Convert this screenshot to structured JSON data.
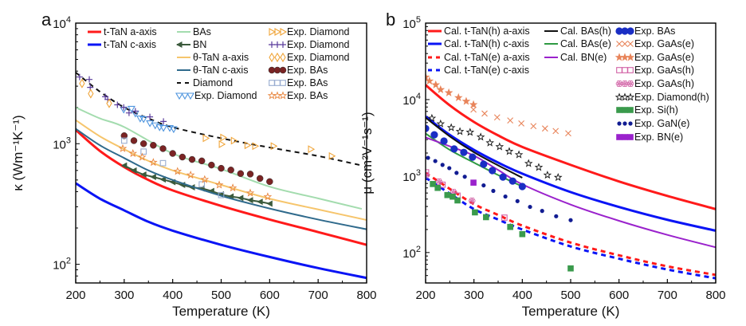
{
  "chart_data": [
    {
      "panel_label": "a",
      "type": "line",
      "xlabel": "Temperature (K)",
      "ylabel": "κ (Wm⁻¹K⁻¹)",
      "xlim": [
        200,
        800
      ],
      "ylim": [
        70,
        10000
      ],
      "yscale": "log",
      "xticks": [
        200,
        300,
        400,
        500,
        600,
        700,
        800
      ],
      "yticks": [
        {
          "value": 100,
          "label": "10",
          "exp": "2"
        },
        {
          "value": 1000,
          "label": "10",
          "exp": "3"
        },
        {
          "value": 10000,
          "label": "10",
          "exp": "4"
        }
      ],
      "grid": false,
      "legend_placement": "top",
      "series": [
        {
          "name": "t-TaN a-axis",
          "style": "line",
          "color": "#ff1a1a",
          "width": 3,
          "x": [
            200,
            250,
            300,
            350,
            400,
            500,
            600,
            700,
            800
          ],
          "y": [
            1300,
            870,
            640,
            500,
            410,
            305,
            235,
            185,
            145
          ]
        },
        {
          "name": "t-TaN c-axis",
          "style": "line",
          "color": "#0a14f5",
          "width": 3,
          "x": [
            200,
            250,
            300,
            350,
            400,
            500,
            600,
            700,
            800
          ],
          "y": [
            470,
            350,
            280,
            225,
            190,
            145,
            115,
            93,
            77
          ]
        },
        {
          "name": "BAs",
          "style": "line",
          "color": "#a3dcae",
          "width": 2,
          "x": [
            200,
            250,
            300,
            400,
            500,
            600,
            700,
            790
          ],
          "y": [
            2000,
            1620,
            1375,
            830,
            617,
            440,
            352,
            288
          ]
        },
        {
          "name": "BN",
          "style": "line-marker",
          "marker": "triangle-left-filled",
          "color": "#3b5a3c",
          "width": 2,
          "x": [
            300,
            320,
            340,
            360,
            380,
            400,
            420,
            440,
            460,
            480,
            500,
            520,
            540,
            560,
            580,
            600
          ],
          "y": [
            660,
            600,
            555,
            530,
            505,
            480,
            455,
            435,
            425,
            405,
            380,
            365,
            355,
            340,
            330,
            318
          ]
        },
        {
          "name": "θ-TaN a-axis",
          "style": "line",
          "color": "#f6c56c",
          "width": 2,
          "x": [
            200,
            250,
            300,
            350,
            400,
            500,
            600,
            700,
            800
          ],
          "y": [
            1570,
            1150,
            900,
            720,
            600,
            455,
            350,
            285,
            233
          ]
        },
        {
          "name": "θ-TaN c-axis",
          "style": "line",
          "color": "#2f6a8c",
          "width": 2,
          "x": [
            200,
            250,
            300,
            350,
            400,
            500,
            600,
            700,
            800
          ],
          "y": [
            1330,
            970,
            760,
            600,
            500,
            370,
            290,
            235,
            195
          ]
        },
        {
          "name": "Diamond",
          "style": "dashed",
          "color": "#111111",
          "width": 2,
          "x": [
            200,
            250,
            300,
            350,
            400,
            500,
            600,
            700,
            790
          ],
          "y": [
            3900,
            2700,
            2000,
            1620,
            1370,
            1110,
            930,
            790,
            660
          ]
        },
        {
          "name": "Exp. Diamond",
          "style": "marker",
          "marker": "triangle-down-open",
          "color": "#4f95de",
          "x": [
            299,
            315,
            323,
            333,
            340,
            353,
            364,
            373,
            381,
            394,
            402
          ],
          "y": [
            1920,
            1950,
            1780,
            1620,
            1600,
            1480,
            1420,
            1370,
            1350,
            1350,
            1320
          ]
        },
        {
          "name": "Exp. Diamond",
          "style": "marker",
          "marker": "triangle-right-open",
          "color": "#f0a53a",
          "x": [
            468,
            501,
            504,
            526,
            554,
            570,
            608,
            685,
            728
          ],
          "y": [
            1110,
            990,
            1125,
            1060,
            970,
            955,
            955,
            900,
            790
          ]
        },
        {
          "name": "Exp. Diamond",
          "style": "marker",
          "marker": "plus",
          "color": "#5a3c9c",
          "x": [
            208,
            228,
            230,
            261,
            266,
            286,
            299,
            310,
            323,
            353,
            381
          ],
          "y": [
            3575,
            3410,
            2930,
            2450,
            2330,
            2100,
            2000,
            1800,
            1860,
            1670,
            1530
          ]
        },
        {
          "name": "Exp. Diamond",
          "style": "marker",
          "marker": "diamond-open",
          "color": "#f0a53a",
          "x": [
            213,
            231,
            269
          ],
          "y": [
            3160,
            2600,
            2160
          ]
        },
        {
          "name": "Exp. BAs",
          "style": "marker",
          "marker": "circle-filled",
          "color": "#7a2424",
          "x": [
            300,
            320,
            340,
            360,
            380,
            400,
            420,
            440,
            460,
            480,
            500,
            520,
            540,
            560,
            580,
            600
          ],
          "y": [
            1165,
            1060,
            1000,
            970,
            910,
            830,
            775,
            740,
            720,
            665,
            625,
            605,
            565,
            560,
            515,
            485
          ]
        },
        {
          "name": "Exp. BAs",
          "style": "marker",
          "marker": "square-open",
          "color": "#98acd0",
          "x": [
            300,
            340,
            380,
            460,
            500
          ],
          "y": [
            1060,
            860,
            690,
            460,
            375
          ]
        },
        {
          "name": "Exp. BAs",
          "style": "marker",
          "marker": "star-open",
          "color": "#e8843c",
          "x": [
            297,
            318,
            337,
            360,
            410,
            437,
            466,
            496,
            524,
            560,
            596
          ],
          "y": [
            912,
            830,
            774,
            700,
            590,
            550,
            505,
            455,
            430,
            390,
            363
          ]
        }
      ]
    },
    {
      "panel_label": "b",
      "type": "line",
      "xlabel": "Temperature (K)",
      "ylabel": "μ (cm²V⁻¹s⁻¹)",
      "xlim": [
        200,
        800
      ],
      "ylim": [
        40,
        100000
      ],
      "yscale": "log",
      "xticks": [
        200,
        300,
        400,
        500,
        600,
        700,
        800
      ],
      "yticks": [
        {
          "value": 100,
          "label": "10",
          "exp": "2"
        },
        {
          "value": 1000,
          "label": "10",
          "exp": "3"
        },
        {
          "value": 10000,
          "label": "10",
          "exp": "4"
        },
        {
          "value": 100000,
          "label": "10",
          "exp": "5"
        }
      ],
      "grid": false,
      "legend_placement": "top",
      "series": [
        {
          "name": "Cal. t-TaN(h) a-axis",
          "style": "line",
          "color": "#ff1a1a",
          "width": 3,
          "x": [
            200,
            250,
            300,
            350,
            400,
            500,
            600,
            700,
            800
          ],
          "y": [
            15500,
            8400,
            5100,
            3400,
            2400,
            1400,
            850,
            550,
            370
          ]
        },
        {
          "name": "Cal. t-TaN(h) c-axis",
          "style": "line",
          "color": "#0a14f5",
          "width": 3,
          "x": [
            200,
            250,
            300,
            350,
            400,
            500,
            600,
            700,
            800
          ],
          "y": [
            6000,
            3450,
            2200,
            1500,
            1075,
            617,
            394,
            268,
            193
          ]
        },
        {
          "name": "Cal. t-TaN(e) a-axis",
          "style": "dashed",
          "color": "#ff1a1a",
          "width": 3,
          "x": [
            200,
            250,
            300,
            350,
            400,
            500,
            600,
            700,
            800
          ],
          "y": [
            1100,
            680,
            430,
            310,
            225,
            135,
            92,
            66,
            51
          ]
        },
        {
          "name": "Cal. t-TaN(e) c-axis",
          "style": "dashed",
          "color": "#0a14f5",
          "width": 3,
          "x": [
            200,
            250,
            300,
            350,
            400,
            500,
            600,
            700,
            800
          ],
          "y": [
            950,
            590,
            370,
            270,
            200,
            120,
            83,
            60,
            46
          ]
        },
        {
          "name": "Cal. BAs(h)",
          "style": "line",
          "color": "#111111",
          "width": 2,
          "x": [
            200,
            250,
            300,
            350,
            400
          ],
          "y": [
            5800,
            3300,
            2050,
            1380,
            950
          ]
        },
        {
          "name": "Cal. BAs(e)",
          "style": "line",
          "color": "#2e9a42",
          "width": 2,
          "x": [
            200,
            250,
            300,
            350,
            400
          ],
          "y": [
            3600,
            2200,
            1500,
            1030,
            730
          ]
        },
        {
          "name": "Cal. BN(e)",
          "style": "line",
          "color": "#9a22cc",
          "width": 2,
          "x": [
            200,
            250,
            300,
            350,
            400,
            500,
            600,
            700,
            800
          ],
          "y": [
            3200,
            2450,
            1850,
            1200,
            780,
            424,
            260,
            170,
            117
          ]
        },
        {
          "name": "Exp. BAs",
          "style": "marker",
          "marker": "circle-filled-large",
          "color": "#1a2ec4",
          "x": [
            200,
            218,
            238,
            259,
            279,
            297,
            320,
            338,
            360,
            380,
            400
          ],
          "y": [
            4190,
            3460,
            2870,
            2260,
            2040,
            1770,
            1430,
            1180,
            970,
            860,
            730
          ]
        },
        {
          "name": "Exp. GaAs(e)",
          "style": "marker",
          "marker": "cross",
          "color": "#e8845a",
          "x": [
            299,
            322,
            348,
            375,
            398,
            423,
            447,
            469,
            495
          ],
          "y": [
            7400,
            6570,
            5860,
            5340,
            4870,
            4500,
            4190,
            3880,
            3620
          ]
        },
        {
          "name": "Exp. GaAs(e)",
          "style": "marker",
          "marker": "star-filled",
          "color": "#e8845a",
          "x": [
            200,
            208,
            221,
            231,
            248,
            268,
            284,
            299
          ],
          "y": [
            19700,
            17500,
            15600,
            13500,
            12300,
            10600,
            9500,
            8600
          ]
        },
        {
          "name": "Exp. GaAs(h)",
          "style": "marker",
          "marker": "square-open",
          "color": "#d262a6",
          "x": [
            201,
            235,
            266,
            363
          ],
          "y": [
            1120,
            770,
            555,
            286
          ]
        },
        {
          "name": "Exp. GaAs(h)",
          "style": "marker",
          "marker": "flower-open",
          "color": "#d262a6",
          "x": [
            201,
            228,
            258,
            296
          ],
          "y": [
            1030,
            845,
            620,
            475
          ]
        },
        {
          "name": "Exp. Diamond(h)",
          "style": "marker",
          "marker": "star-open",
          "color": "#111111",
          "x": [
            213,
            231,
            253,
            271,
            292,
            314,
            333,
            353,
            373,
            393,
            413,
            434,
            452,
            474
          ],
          "y": [
            5700,
            4820,
            4300,
            3830,
            3740,
            3240,
            2720,
            2420,
            2100,
            1900,
            1460,
            1300,
            1030,
            960
          ]
        },
        {
          "name": "Exp. Si(h)",
          "style": "marker",
          "marker": "square-filled",
          "color": "#3a9a4c",
          "x": [
            215,
            225,
            245,
            256,
            266,
            302,
            325,
            375,
            400,
            500
          ],
          "y": [
            787,
            700,
            564,
            538,
            480,
            335,
            290,
            216,
            174,
            62
          ]
        },
        {
          "name": "Exp. GaN(e)",
          "style": "marker",
          "marker": "dot",
          "color": "#111c92",
          "x": [
            205,
            220,
            235,
            249,
            264,
            281,
            320,
            340,
            365,
            390,
            416,
            441,
            470,
            500
          ],
          "y": [
            1730,
            1570,
            1400,
            1270,
            1100,
            980,
            755,
            640,
            540,
            470,
            395,
            350,
            298,
            265
          ]
        },
        {
          "name": "Exp. BN(e)",
          "style": "marker",
          "marker": "square-filled",
          "color": "#9a22cc",
          "x": [
            299
          ],
          "y": [
            820
          ]
        }
      ]
    }
  ]
}
